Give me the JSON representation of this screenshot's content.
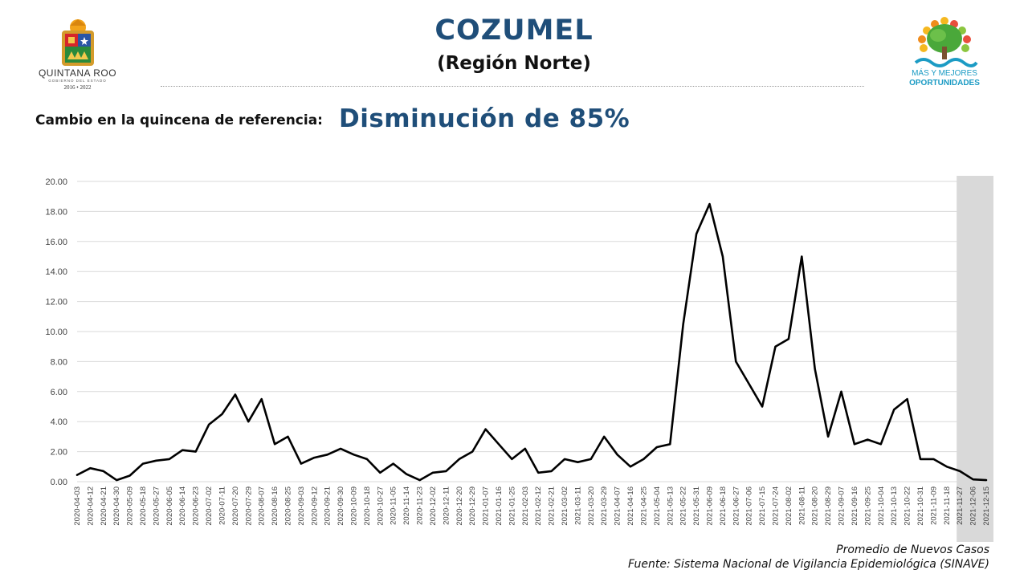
{
  "header": {
    "title": "COZUMEL",
    "subtitle": "(Región Norte)",
    "change_label": "Cambio en la quincena de referencia:",
    "change_value": "Disminución de 85%"
  },
  "logos": {
    "left": {
      "name": "QUINTANA ROO",
      "sub": "GOBIERNO DEL ESTADO",
      "years": "2016 • 2022"
    },
    "right": {
      "line1": "MÁS Y MEJORES",
      "line2": "OPORTUNIDADES"
    }
  },
  "footer": {
    "series_label": "Promedio de Nuevos Casos",
    "source": "Fuente: Sistema Nacional de Vigilancia Epidemiológica (SINAVE)"
  },
  "colors": {
    "title": "#1f4e79",
    "line": "#000000",
    "shade": "#d9d9d9",
    "logo_blue": "#1b9bc4"
  },
  "chart_data": {
    "type": "line",
    "title": "",
    "xlabel": "",
    "ylabel": "",
    "ylim": [
      0,
      20
    ],
    "yticks": [
      "0.00",
      "2.00",
      "4.00",
      "6.00",
      "8.00",
      "10.00",
      "12.00",
      "14.00",
      "16.00",
      "18.00",
      "20.00"
    ],
    "grid": true,
    "shaded_from": "2021-11-27",
    "categories": [
      "2020-04-03",
      "2020-04-12",
      "2020-04-21",
      "2020-04-30",
      "2020-05-09",
      "2020-05-18",
      "2020-05-27",
      "2020-06-05",
      "2020-06-14",
      "2020-06-23",
      "2020-07-02",
      "2020-07-11",
      "2020-07-20",
      "2020-07-29",
      "2020-08-07",
      "2020-08-16",
      "2020-08-25",
      "2020-09-03",
      "2020-09-12",
      "2020-09-21",
      "2020-09-30",
      "2020-10-09",
      "2020-10-18",
      "2020-10-27",
      "2020-11-05",
      "2020-11-14",
      "2020-11-23",
      "2020-12-02",
      "2020-12-11",
      "2020-12-20",
      "2020-12-29",
      "2021-01-07",
      "2021-01-16",
      "2021-01-25",
      "2021-02-03",
      "2021-02-12",
      "2021-02-21",
      "2021-03-02",
      "2021-03-11",
      "2021-03-20",
      "2021-03-29",
      "2021-04-07",
      "2021-04-16",
      "2021-04-25",
      "2021-05-04",
      "2021-05-13",
      "2021-05-22",
      "2021-05-31",
      "2021-06-09",
      "2021-06-18",
      "2021-06-27",
      "2021-07-06",
      "2021-07-15",
      "2021-07-24",
      "2021-08-02",
      "2021-08-11",
      "2021-08-20",
      "2021-08-29",
      "2021-09-07",
      "2021-09-16",
      "2021-09-25",
      "2021-10-04",
      "2021-10-13",
      "2021-10-22",
      "2021-10-31",
      "2021-11-09",
      "2021-11-18",
      "2021-11-27",
      "2021-12-06",
      "2021-12-15"
    ],
    "series": [
      {
        "values": [
          0.45,
          0.9,
          0.7,
          0.1,
          0.4,
          1.2,
          1.4,
          1.5,
          2.1,
          2.0,
          3.8,
          4.5,
          5.8,
          4.0,
          5.5,
          2.5,
          3.0,
          1.2,
          1.6,
          1.8,
          2.2,
          1.8,
          1.5,
          0.6,
          1.2,
          0.5,
          0.1,
          0.6,
          0.7,
          1.5,
          2.0,
          3.5,
          2.5,
          1.5,
          2.2,
          0.6,
          0.7,
          1.5,
          1.3,
          1.5,
          3.0,
          1.8,
          1.0,
          1.5,
          2.3,
          2.5,
          10.5,
          16.5,
          18.5,
          15.0,
          8.0,
          6.5,
          5.0,
          9.0,
          9.5,
          15.0,
          7.5,
          3.0,
          6.0,
          2.5,
          2.8,
          2.5,
          4.8,
          5.5,
          1.5,
          1.5,
          1.0,
          0.7,
          0.15,
          0.1
        ]
      }
    ]
  }
}
